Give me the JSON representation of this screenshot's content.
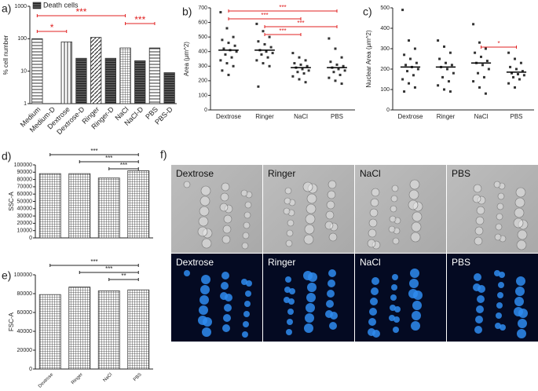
{
  "chart_data": [
    {
      "type": "bar",
      "panel_label": "a)",
      "ylabel": "% cell number",
      "log_scale": true,
      "categories": [
        "Medium",
        "Medium-D",
        "Dextrose",
        "Dextrose-D",
        "Ringer",
        "Ringer-D",
        "NaCl",
        "NaCl-D",
        "PBS",
        "PBS-D"
      ],
      "values": [
        100,
        null,
        80,
        25,
        110,
        25,
        52,
        21,
        52,
        9
      ],
      "ylim": [
        1,
        1000
      ],
      "yticks": [
        1,
        10,
        100,
        1000
      ],
      "color": "#333333",
      "legend": "upper-left",
      "legend_label": "Death cells",
      "annotation_color": "#e02020",
      "annotations": [
        {
          "text": "***",
          "from": 0,
          "to": 6
        },
        {
          "text": "***",
          "from": 6,
          "to": 8
        },
        {
          "text": "*",
          "from": 0,
          "to": 2
        }
      ]
    },
    {
      "type": "strip",
      "panel_label": "b)",
      "ylabel": "Area (μm^2)",
      "categories": [
        "Dextrose",
        "Ringer",
        "NaCl",
        "PBS"
      ],
      "values": [
        [
          670,
          560,
          500,
          480,
          460,
          440,
          420,
          410,
          400,
          380,
          360,
          340,
          320,
          300,
          270,
          240
        ],
        [
          590,
          540,
          500,
          470,
          450,
          430,
          410,
          400,
          390,
          380,
          360,
          340,
          320,
          300,
          160
        ],
        [
          390,
          360,
          340,
          320,
          310,
          300,
          290,
          280,
          270,
          260,
          250,
          230,
          210,
          190
        ],
        [
          490,
          420,
          360,
          330,
          310,
          300,
          290,
          280,
          270,
          260,
          240,
          220,
          200,
          180
        ]
      ],
      "means": [
        410,
        410,
        290,
        290
      ],
      "color": "#333333",
      "ylim": [
        0,
        700
      ],
      "yticks": [
        0,
        100,
        200,
        300,
        400,
        500,
        600,
        700
      ],
      "annotation_color": "#e02020",
      "annotations": [
        {
          "text": "***",
          "from": 0,
          "to": 3
        },
        {
          "text": "***",
          "from": 0,
          "to": 2
        },
        {
          "text": "***",
          "from": 1,
          "to": 3
        },
        {
          "text": "***",
          "from": 1,
          "to": 2
        }
      ]
    },
    {
      "type": "strip",
      "panel_label": "c)",
      "ylabel": "Nuclear Area (μm^2)",
      "categories": [
        "Dextrose",
        "Ringer",
        "NaCl",
        "PBS"
      ],
      "values": [
        [
          490,
          340,
          300,
          270,
          250,
          230,
          220,
          210,
          200,
          190,
          170,
          150,
          130,
          110,
          90
        ],
        [
          340,
          310,
          280,
          250,
          230,
          220,
          210,
          200,
          180,
          160,
          140,
          120,
          100,
          90
        ],
        [
          420,
          330,
          300,
          280,
          260,
          240,
          230,
          220,
          200,
          180,
          160,
          140,
          110,
          80
        ],
        [
          280,
          250,
          230,
          210,
          200,
          190,
          180,
          175,
          170,
          160,
          150,
          130,
          110
        ]
      ],
      "means": [
        210,
        210,
        230,
        185
      ],
      "color": "#333333",
      "ylim": [
        0,
        500
      ],
      "yticks": [
        0,
        100,
        200,
        300,
        400,
        500
      ],
      "annotation_color": "#e02020",
      "annotations": [
        {
          "text": "*",
          "from": 2,
          "to": 3
        }
      ]
    },
    {
      "type": "bar",
      "panel_label": "d)",
      "ylabel": "SSC-A",
      "values": [
        88000,
        88000,
        82000,
        92000
      ],
      "color": "#333333",
      "ylim": [
        0,
        100000
      ],
      "yticks": [
        0,
        10000,
        20000,
        30000,
        40000,
        50000,
        60000,
        70000,
        80000,
        90000,
        100000
      ],
      "annotation_color": "#222222",
      "annotations": [
        {
          "text": "***",
          "from": 0,
          "to": 3
        },
        {
          "text": "***",
          "from": 1,
          "to": 3
        },
        {
          "text": "***",
          "from": 2,
          "to": 3
        }
      ]
    },
    {
      "type": "bar",
      "panel_label": "e)",
      "ylabel": "FSC-A",
      "categories": [
        "Dextrose",
        "Ringer",
        "NaCl",
        "PBS"
      ],
      "values": [
        79000,
        87000,
        83000,
        84000
      ],
      "color": "#333333",
      "ylim": [
        0,
        100000
      ],
      "yticks": [
        0,
        20000,
        40000,
        60000,
        80000,
        100000
      ],
      "annotation_color": "#222222",
      "annotations": [
        {
          "text": "***",
          "from": 0,
          "to": 3
        },
        {
          "text": "***",
          "from": 1,
          "to": 3
        },
        {
          "text": "**",
          "from": 2,
          "to": 3
        }
      ]
    }
  ],
  "images": {
    "panel_label": "f)",
    "top_labels": [
      "Dextrose",
      "Ringer",
      "NaCl",
      "PBS"
    ],
    "bottom_labels": [
      "Dextrose",
      "Ringer",
      "NaCl",
      "PBS"
    ]
  }
}
